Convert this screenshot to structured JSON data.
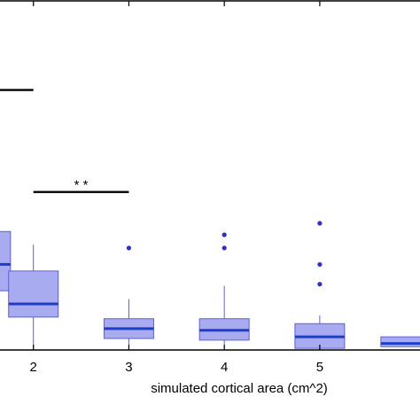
{
  "chart_data": {
    "type": "box",
    "xlabel": "simulated cortical area (cm^2)",
    "x_ticks": [
      "2",
      "3",
      "4",
      "5"
    ],
    "colors": {
      "box_fill": "#a9abf1",
      "box_edge": "#5b5ee6",
      "median": "#1f3ec8",
      "outlier": "#2d2fd6",
      "bracket": "#000000"
    },
    "boxes": [
      {
        "x": 1.5,
        "lower_whisker": 1.8,
        "q1": 1.8,
        "median": 2.6,
        "q3": 3.6,
        "upper_whisker": 4.2,
        "outliers": [],
        "partial": true
      },
      {
        "x": 2,
        "lower_whisker": 0.0,
        "q1": 1.0,
        "median": 1.4,
        "q3": 2.4,
        "upper_whisker": 3.2,
        "outliers": []
      },
      {
        "x": 3,
        "lower_whisker": 0.0,
        "q1": 0.35,
        "median": 0.65,
        "q3": 0.95,
        "upper_whisker": 1.55,
        "outliers": [
          3.1
        ]
      },
      {
        "x": 4,
        "lower_whisker": 0.0,
        "q1": 0.3,
        "median": 0.6,
        "q3": 0.95,
        "upper_whisker": 1.95,
        "outliers": [
          3.1,
          3.5
        ]
      },
      {
        "x": 5,
        "lower_whisker": 0.05,
        "q1": 0.05,
        "median": 0.4,
        "q3": 0.8,
        "upper_whisker": 1.05,
        "outliers": [
          2.0,
          2.6,
          3.85
        ]
      },
      {
        "x": 5.9,
        "lower_whisker": 0.1,
        "q1": 0.1,
        "median": 0.2,
        "q3": 0.4,
        "upper_whisker": 0.4,
        "outliers": [],
        "partial": true
      }
    ],
    "significance": [
      {
        "x_start": 1.2,
        "x_end": 2,
        "y": 7.9,
        "label": ""
      },
      {
        "x_start": 2,
        "x_end": 3,
        "y": 4.8,
        "label": "* *"
      }
    ],
    "ylim": [
      0,
      10.5
    ],
    "xlim": [
      1.65,
      6.05
    ],
    "grid": false
  }
}
